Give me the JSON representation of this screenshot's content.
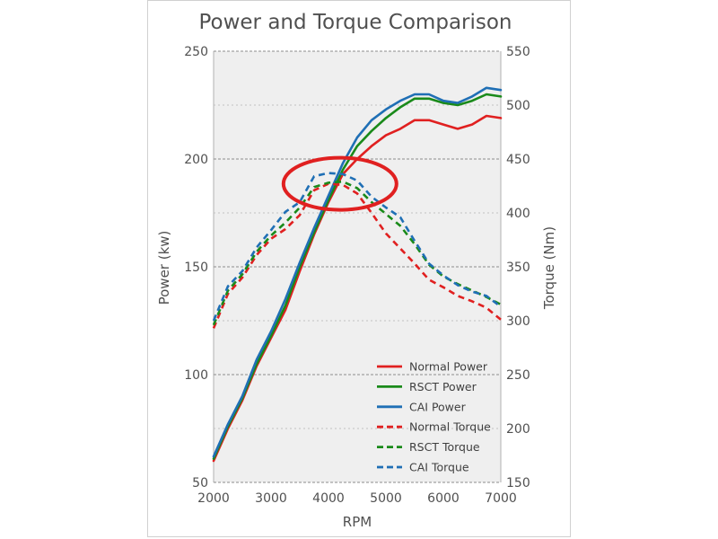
{
  "chart_data": {
    "type": "line",
    "title": "Power and Torque Comparison",
    "xlabel": "RPM",
    "ylabel_left": "Power (kw)",
    "ylabel_right": "Torque (Nm)",
    "xlim": [
      2000,
      7000
    ],
    "ylim_left": [
      50,
      250
    ],
    "ylim_right": [
      150,
      550
    ],
    "x_ticks": [
      "2000",
      "3000",
      "4000",
      "5000",
      "6000",
      "7000"
    ],
    "y_ticks_left": [
      "50",
      "100",
      "150",
      "200",
      "250"
    ],
    "y_ticks_right": [
      "150",
      "200",
      "250",
      "300",
      "350",
      "400",
      "450",
      "500",
      "550"
    ],
    "grid": true,
    "legend_position": "bottom-right",
    "annotation": {
      "type": "ellipse",
      "color": "#e02020",
      "center": {
        "x": 4200,
        "y_torque": 427
      }
    },
    "x": [
      2000,
      2250,
      2500,
      2750,
      3000,
      3250,
      3500,
      3750,
      4000,
      4250,
      4500,
      4750,
      5000,
      5250,
      5500,
      5750,
      6000,
      6250,
      6500,
      6750,
      7000
    ],
    "series": [
      {
        "name": "Normal Power",
        "axis": "left",
        "style": "solid",
        "color": "#e02020",
        "values": [
          60,
          75,
          88,
          104,
          117,
          130,
          148,
          165,
          180,
          193,
          200,
          206,
          211,
          214,
          218,
          218,
          216,
          214,
          216,
          220,
          219
        ]
      },
      {
        "name": "RSCT Power",
        "axis": "left",
        "style": "solid",
        "color": "#1a8a1a",
        "values": [
          61,
          76,
          89,
          105,
          118,
          132,
          150,
          166,
          181,
          195,
          206,
          213,
          219,
          224,
          228,
          228,
          226,
          225,
          227,
          230,
          229
        ]
      },
      {
        "name": "CAI Power",
        "axis": "left",
        "style": "solid",
        "color": "#1f6fb5",
        "values": [
          62,
          77,
          90,
          107,
          120,
          135,
          152,
          168,
          183,
          198,
          210,
          218,
          223,
          227,
          230,
          230,
          227,
          226,
          229,
          233,
          232
        ]
      },
      {
        "name": "Normal Torque",
        "axis": "right",
        "style": "dashed",
        "color": "#e02020",
        "values": [
          293,
          325,
          340,
          361,
          376,
          385,
          398,
          421,
          427,
          426,
          418,
          400,
          381,
          367,
          353,
          338,
          331,
          323,
          318,
          312,
          301
        ]
      },
      {
        "name": "RSCT Torque",
        "axis": "right",
        "style": "dashed",
        "color": "#1a8a1a",
        "values": [
          296,
          328,
          343,
          364,
          379,
          391,
          405,
          424,
          428,
          429,
          423,
          410,
          399,
          388,
          371,
          352,
          341,
          334,
          328,
          322,
          315
        ]
      },
      {
        "name": "CAI Torque",
        "axis": "right",
        "style": "dashed",
        "color": "#1f6fb5",
        "values": [
          300,
          332,
          346,
          368,
          384,
          401,
          410,
          434,
          437,
          436,
          430,
          415,
          405,
          396,
          374,
          353,
          342,
          333,
          327,
          323,
          313
        ]
      }
    ]
  }
}
